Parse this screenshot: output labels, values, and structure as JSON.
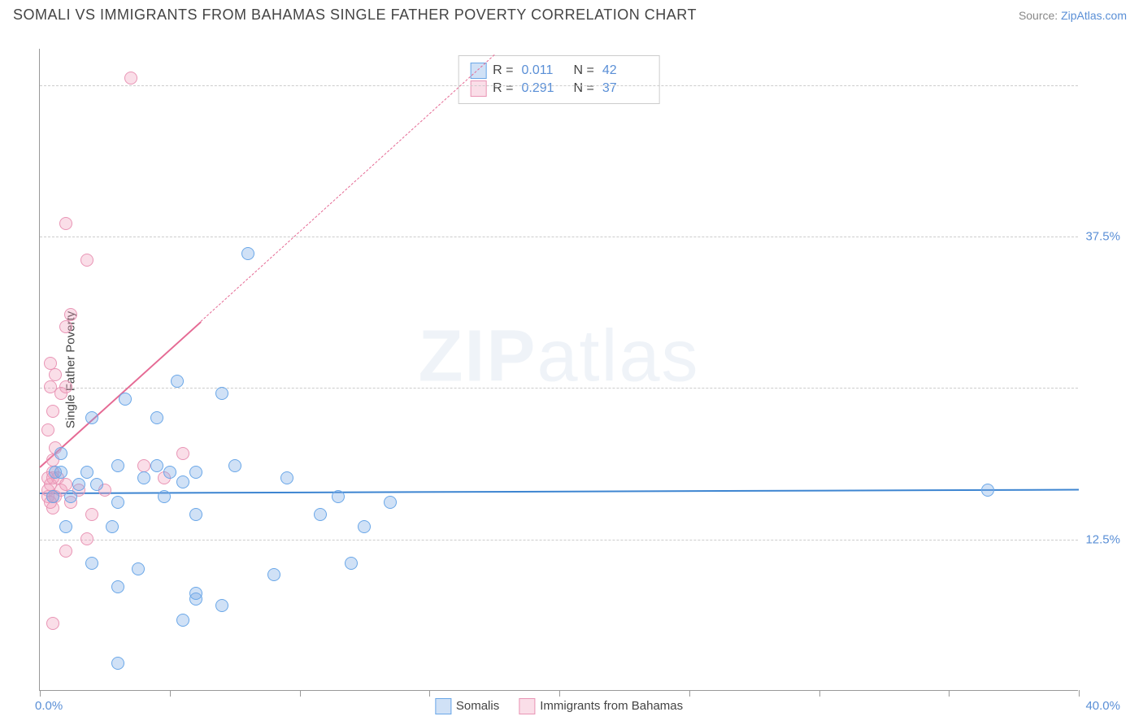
{
  "header": {
    "title": "SOMALI VS IMMIGRANTS FROM BAHAMAS SINGLE FATHER POVERTY CORRELATION CHART",
    "source_prefix": "Source: ",
    "source_link": "ZipAtlas.com"
  },
  "watermark": {
    "bold": "ZIP",
    "light": "atlas"
  },
  "chart": {
    "type": "scatter",
    "y_axis_label": "Single Father Poverty",
    "x_range": [
      0,
      40
    ],
    "y_range": [
      0,
      53
    ],
    "x_ticks": [
      0,
      5,
      10,
      15,
      20,
      25,
      30,
      35,
      40
    ],
    "x_tick_labels": {
      "0": "0.0%",
      "40": "40.0%"
    },
    "y_gridlines": [
      12.5,
      25.0,
      37.5,
      50.0
    ],
    "y_tick_labels": {
      "12.5": "12.5%",
      "25.0": "25.0%",
      "37.5": "37.5%",
      "50.0": "50.0%"
    },
    "background_color": "#ffffff",
    "grid_color": "#cccccc",
    "axis_color": "#999999",
    "marker_radius": 8,
    "marker_stroke_width": 1.5,
    "series": [
      {
        "key": "somalis",
        "label": "Somalis",
        "fill": "rgba(120,170,230,0.35)",
        "stroke": "#6aa7e8",
        "line_color": "#3d85d1",
        "R": "0.011",
        "N": "42",
        "regression": {
          "x1": 0,
          "y1": 16.4,
          "x2": 40,
          "y2": 16.7
        },
        "points": [
          [
            3.0,
            2.2
          ],
          [
            1.8,
            18.0
          ],
          [
            0.6,
            18.0
          ],
          [
            2.2,
            17.0
          ],
          [
            3.3,
            24.0
          ],
          [
            4.5,
            22.5
          ],
          [
            3.0,
            15.5
          ],
          [
            2.8,
            13.5
          ],
          [
            4.0,
            17.5
          ],
          [
            5.5,
            17.2
          ],
          [
            5.3,
            25.5
          ],
          [
            6.0,
            18.0
          ],
          [
            7.0,
            24.5
          ],
          [
            8.0,
            36.0
          ],
          [
            7.5,
            18.5
          ],
          [
            9.0,
            9.5
          ],
          [
            9.5,
            17.5
          ],
          [
            10.8,
            14.5
          ],
          [
            11.5,
            16.0
          ],
          [
            12.0,
            10.5
          ],
          [
            13.5,
            15.5
          ],
          [
            5.5,
            5.8
          ],
          [
            6.0,
            7.5
          ],
          [
            3.0,
            8.5
          ],
          [
            3.8,
            10.0
          ],
          [
            2.0,
            10.5
          ],
          [
            1.0,
            13.5
          ],
          [
            1.5,
            17.0
          ],
          [
            0.8,
            19.5
          ],
          [
            0.5,
            16.0
          ],
          [
            12.5,
            13.5
          ],
          [
            7.0,
            7.0
          ],
          [
            6.0,
            14.5
          ],
          [
            4.5,
            18.5
          ],
          [
            2.0,
            22.5
          ],
          [
            0.8,
            18.0
          ],
          [
            1.2,
            16.0
          ],
          [
            3.0,
            18.5
          ],
          [
            4.8,
            16.0
          ],
          [
            5.0,
            18.0
          ],
          [
            6.0,
            8.0
          ],
          [
            36.5,
            16.5
          ]
        ]
      },
      {
        "key": "bahamas",
        "label": "Immigrants from Bahamas",
        "fill": "rgba(240,160,190,0.35)",
        "stroke": "#e995b5",
        "line_color": "#e56a94",
        "R": "0.291",
        "N": "37",
        "regression_solid": {
          "x1": 0,
          "y1": 18.5,
          "x2": 6.2,
          "y2": 30.5
        },
        "regression_dashed": {
          "x1": 6.2,
          "y1": 30.5,
          "x2": 17.5,
          "y2": 52.5
        },
        "points": [
          [
            0.3,
            16.0
          ],
          [
            0.4,
            17.0
          ],
          [
            0.5,
            15.0
          ],
          [
            0.5,
            18.0
          ],
          [
            0.6,
            20.0
          ],
          [
            0.3,
            21.5
          ],
          [
            0.5,
            23.0
          ],
          [
            0.8,
            24.5
          ],
          [
            0.4,
            25.0
          ],
          [
            0.6,
            26.0
          ],
          [
            0.4,
            27.0
          ],
          [
            1.0,
            25.0
          ],
          [
            0.5,
            19.0
          ],
          [
            0.3,
            16.5
          ],
          [
            0.7,
            17.5
          ],
          [
            1.0,
            30.0
          ],
          [
            1.2,
            31.0
          ],
          [
            1.8,
            35.5
          ],
          [
            1.0,
            38.5
          ],
          [
            3.5,
            50.5
          ],
          [
            1.2,
            15.5
          ],
          [
            1.5,
            16.5
          ],
          [
            2.0,
            14.5
          ],
          [
            1.0,
            11.5
          ],
          [
            0.5,
            5.5
          ],
          [
            1.8,
            12.5
          ],
          [
            2.5,
            16.5
          ],
          [
            4.0,
            18.5
          ],
          [
            4.8,
            17.5
          ],
          [
            0.3,
            17.5
          ],
          [
            0.6,
            16.0
          ],
          [
            0.4,
            15.5
          ],
          [
            0.8,
            16.5
          ],
          [
            1.0,
            17.0
          ],
          [
            0.5,
            16.0
          ],
          [
            5.5,
            19.5
          ],
          [
            0.5,
            17.5
          ]
        ]
      }
    ],
    "legend_top": {
      "R_label": "R =",
      "N_label": "N ="
    },
    "legend_bottom_order": [
      "somalis",
      "bahamas"
    ]
  }
}
